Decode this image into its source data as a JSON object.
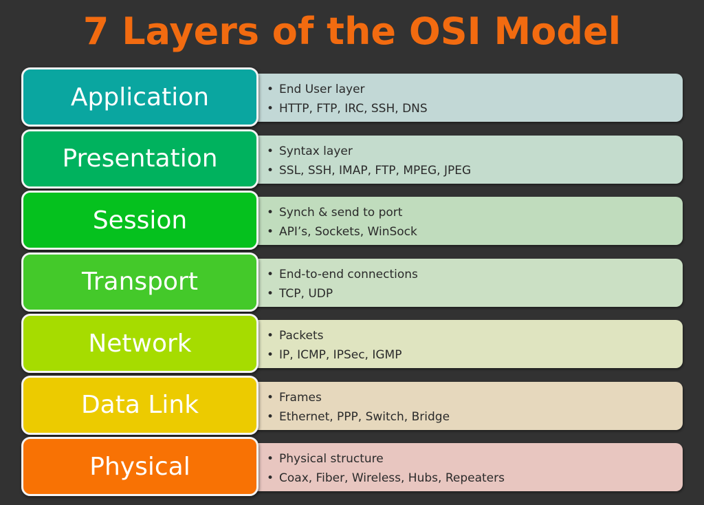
{
  "title": "7 Layers of the OSI Model",
  "layers": [
    {
      "name": "Application",
      "color": "#0aa6a0",
      "desc_color": "#c2d8d6",
      "bullets": [
        "End User layer",
        "HTTP, FTP, IRC, SSH, DNS"
      ]
    },
    {
      "name": "Presentation",
      "color": "#00b25e",
      "desc_color": "#c4dccd",
      "bullets": [
        "Syntax layer",
        "SSL, SSH, IMAP, FTP, MPEG, JPEG"
      ]
    },
    {
      "name": "Session",
      "color": "#05c11e",
      "desc_color": "#c0dcbd",
      "bullets": [
        "Synch & send to port",
        "API’s, Sockets, WinSock"
      ]
    },
    {
      "name": "Transport",
      "color": "#44c92a",
      "desc_color": "#cbe0c4",
      "bullets": [
        "End-to-end connections",
        "TCP, UDP"
      ]
    },
    {
      "name": "Network",
      "color": "#a6dc00",
      "desc_color": "#dfe4c0",
      "bullets": [
        "Packets",
        "IP, ICMP, IPSec, IGMP"
      ]
    },
    {
      "name": "Data Link",
      "color": "#eccb00",
      "desc_color": "#e6d8bd",
      "bullets": [
        "Frames",
        "Ethernet, PPP, Switch, Bridge"
      ]
    },
    {
      "name": "Physical",
      "color": "#f87204",
      "desc_color": "#e8c6c0",
      "bullets": [
        "Physical structure",
        "Coax, Fiber, Wireless, Hubs, Repeaters"
      ]
    }
  ]
}
